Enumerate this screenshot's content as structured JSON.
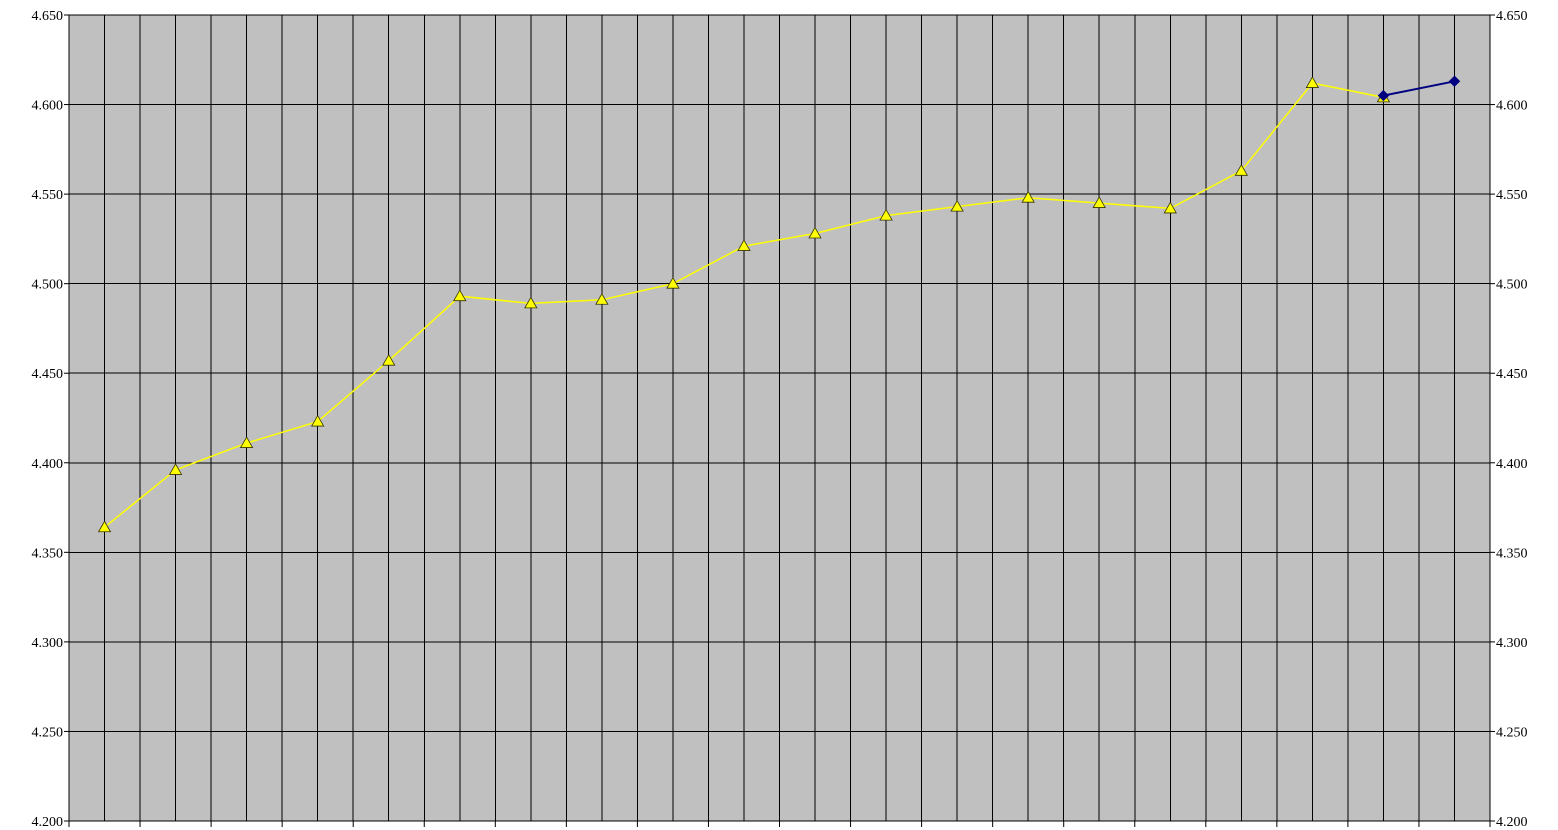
{
  "chart_data": {
    "type": "line",
    "title": "",
    "xlabel": "",
    "ylabel": "",
    "ylim": [
      4.2,
      4.65
    ],
    "y_ticks": [
      "4.200",
      "4.250",
      "4.300",
      "4.350",
      "4.400",
      "4.450",
      "4.500",
      "4.550",
      "4.600",
      "4.650"
    ],
    "y_axis_sides": "both",
    "grid": "both",
    "plot_background": "#C0C0C0",
    "x_count": 20,
    "series": [
      {
        "color": "#FFFF00",
        "marker": "triangle",
        "marker_color": "#FFFF00",
        "x": [
          1,
          2,
          3,
          4,
          5,
          6,
          7,
          8,
          9,
          10,
          11,
          12,
          13,
          14,
          15,
          16,
          17,
          18,
          19
        ],
        "values": [
          4.364,
          4.396,
          4.411,
          4.423,
          4.457,
          4.493,
          4.489,
          4.491,
          4.5,
          4.521,
          4.528,
          4.538,
          4.543,
          4.548,
          4.545,
          4.542,
          4.563,
          4.612,
          4.604
        ]
      },
      {
        "color": "#000080",
        "marker": "diamond",
        "marker_color": "#000080",
        "x": [
          19,
          20
        ],
        "values": [
          4.605,
          4.613
        ]
      }
    ]
  }
}
